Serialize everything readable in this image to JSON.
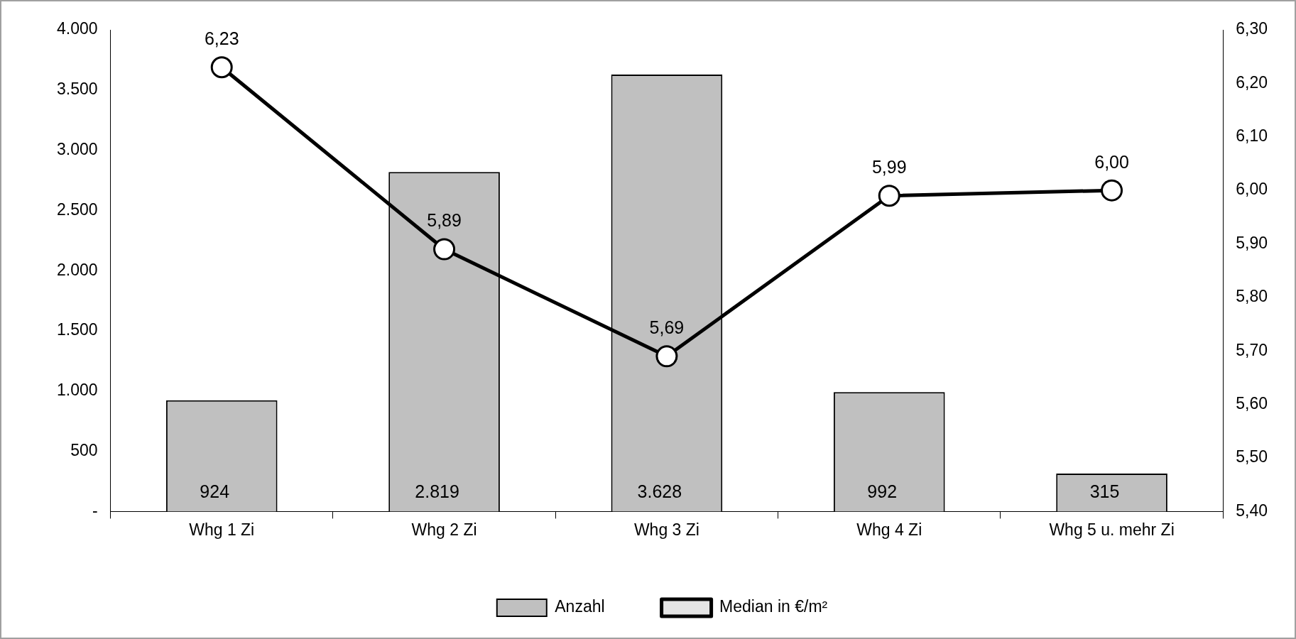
{
  "chart_data": {
    "type": "bar",
    "categories": [
      "Whg 1 Zi",
      "Whg 2 Zi",
      "Whg 3 Zi",
      "Whg 4 Zi",
      "Whg 5 u. mehr Zi"
    ],
    "series": [
      {
        "name": "Anzahl",
        "color": "#c0c0c0",
        "values": [
          924,
          2819,
          3628,
          992,
          315
        ],
        "value_labels": [
          "924",
          "2.819",
          "3.628",
          "992",
          "315"
        ]
      },
      {
        "name": "Median in €/m²",
        "type": "line",
        "axis": "y2",
        "color": "#000000",
        "marker": "circle",
        "values": [
          6.23,
          5.89,
          5.69,
          5.99,
          6.0
        ],
        "value_labels": [
          "6,23",
          "5,89",
          "5,69",
          "5,99",
          "6,00"
        ]
      }
    ],
    "ylim": [
      0,
      4000
    ],
    "yticks": [
      {
        "value": 0,
        "label": "-"
      },
      {
        "value": 500,
        "label": "500"
      },
      {
        "value": 1000,
        "label": "1.000"
      },
      {
        "value": 1500,
        "label": "1.500"
      },
      {
        "value": 2000,
        "label": "2.000"
      },
      {
        "value": 2500,
        "label": "2.500"
      },
      {
        "value": 3000,
        "label": "3.000"
      },
      {
        "value": 3500,
        "label": "3.500"
      },
      {
        "value": 4000,
        "label": "4.000"
      }
    ],
    "y2lim": [
      5.4,
      6.3
    ],
    "y2ticks": [
      {
        "value": 5.4,
        "label": "5,40"
      },
      {
        "value": 5.5,
        "label": "5,50"
      },
      {
        "value": 5.6,
        "label": "5,60"
      },
      {
        "value": 5.7,
        "label": "5,70"
      },
      {
        "value": 5.8,
        "label": "5,80"
      },
      {
        "value": 5.9,
        "label": "5,90"
      },
      {
        "value": 6.0,
        "label": "6,00"
      },
      {
        "value": 6.1,
        "label": "6,10"
      },
      {
        "value": 6.2,
        "label": "6,20"
      },
      {
        "value": 6.3,
        "label": "6,30"
      }
    ],
    "grid": false,
    "legend": "bottom"
  }
}
